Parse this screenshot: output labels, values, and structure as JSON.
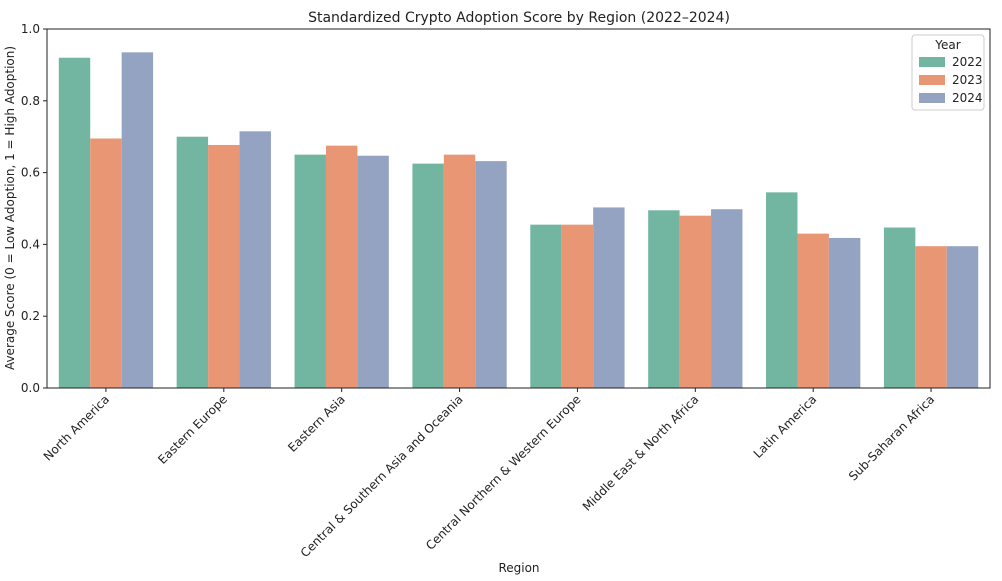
{
  "chart_data": {
    "type": "bar",
    "title": "Standardized Crypto Adoption Score by Region (2022–2024)",
    "xlabel": "Region",
    "ylabel": "Average Score (0 = Low Adoption, 1 = High Adoption)",
    "ylim": [
      0,
      1.0
    ],
    "yticks": [
      "0.0",
      "0.2",
      "0.4",
      "0.6",
      "0.8",
      "1.0"
    ],
    "grid": false,
    "legend": {
      "title": "Year",
      "placement": "top-right"
    },
    "categories": [
      "North America",
      "Eastern Europe",
      "Eastern Asia",
      "Central & Southern Asia and Oceania",
      "Central Northern & Western Europe",
      "Middle East & North Africa",
      "Latin America",
      "Sub-Saharan Africa"
    ],
    "series": [
      {
        "name": "2022",
        "color": "#72b6a1",
        "values": [
          0.92,
          0.7,
          0.65,
          0.625,
          0.455,
          0.495,
          0.545,
          0.447
        ]
      },
      {
        "name": "2023",
        "color": "#e99675",
        "values": [
          0.695,
          0.677,
          0.675,
          0.65,
          0.455,
          0.48,
          0.43,
          0.395
        ]
      },
      {
        "name": "2024",
        "color": "#95a3c3",
        "values": [
          0.935,
          0.715,
          0.647,
          0.632,
          0.503,
          0.498,
          0.418,
          0.395
        ]
      }
    ]
  }
}
